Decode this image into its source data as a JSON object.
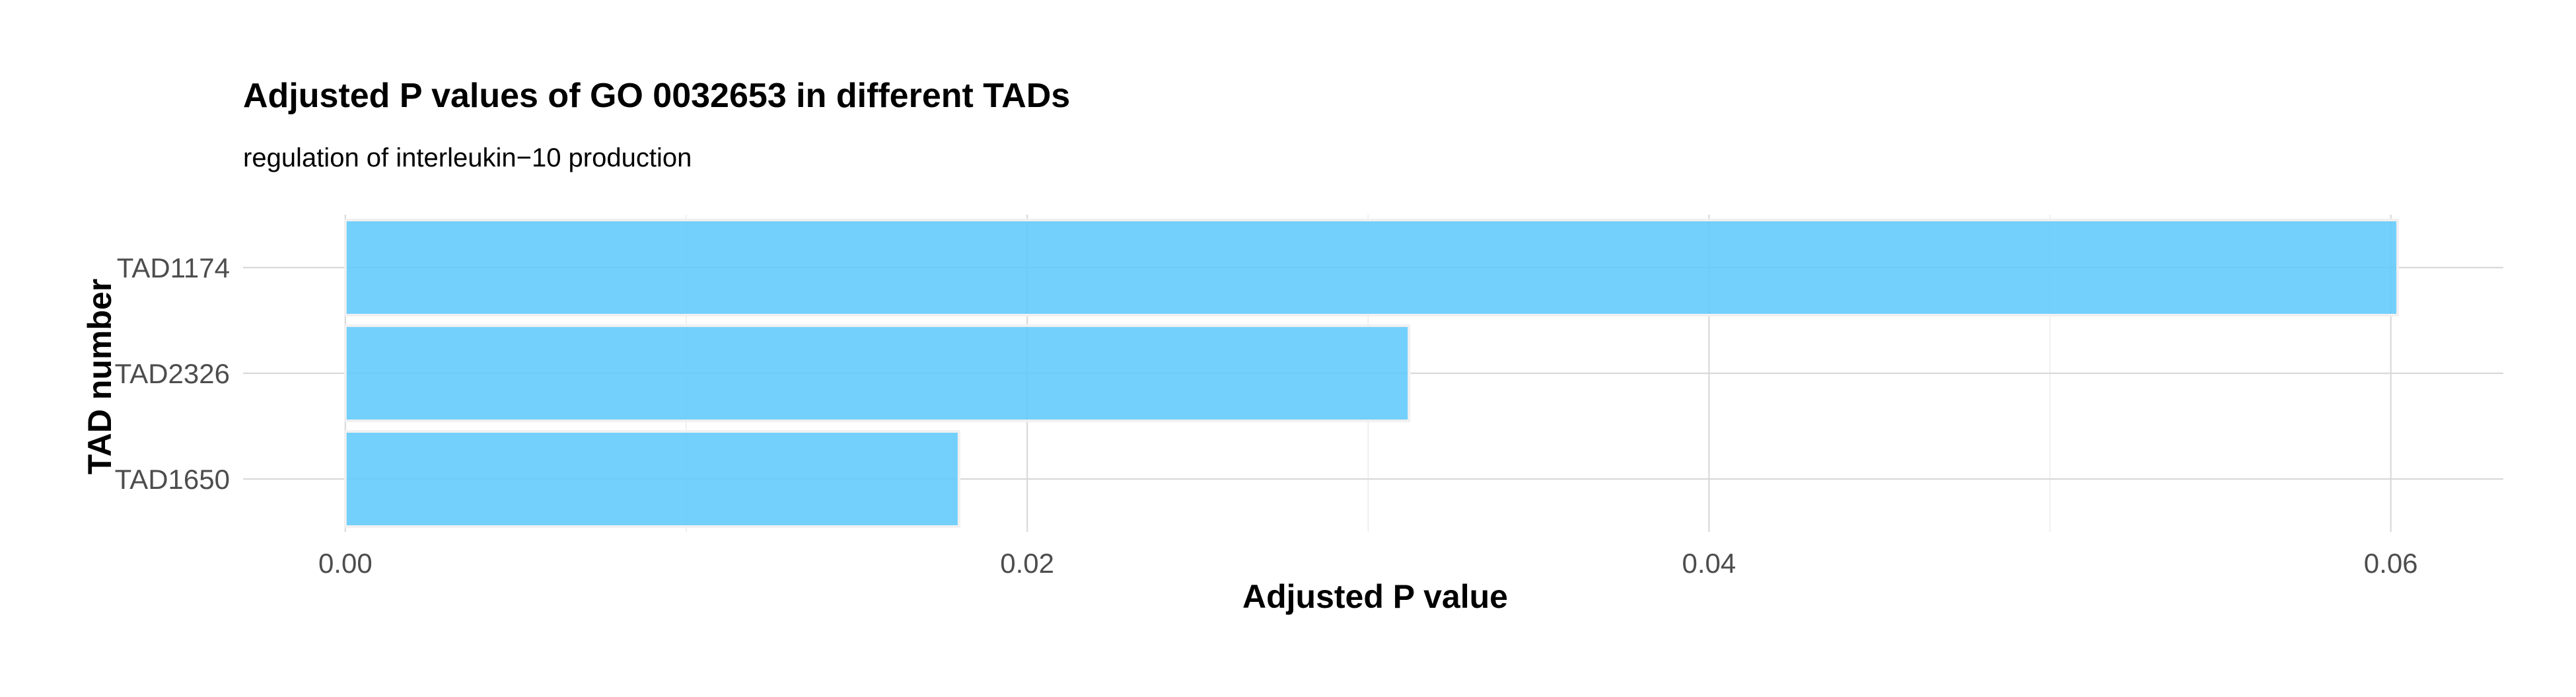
{
  "chart_data": {
    "type": "bar",
    "orientation": "horizontal",
    "title": "Adjusted P values of GO 0032653 in different TADs",
    "subtitle": "regulation of interleukin−10 production",
    "xlabel": "Adjusted P value",
    "ylabel": "TAD number",
    "categories": [
      "TAD1174",
      "TAD2326",
      "TAD1650"
    ],
    "values": [
      0.0602,
      0.0312,
      0.018
    ],
    "xlim": [
      -0.003,
      0.0633
    ],
    "xticks": [
      0,
      0.02,
      0.04,
      0.06
    ],
    "xtick_labels": [
      "0.00",
      "0.02",
      "0.04",
      "0.06"
    ],
    "bar_color": "#5BC8FB",
    "grid": true,
    "legend": "none"
  }
}
